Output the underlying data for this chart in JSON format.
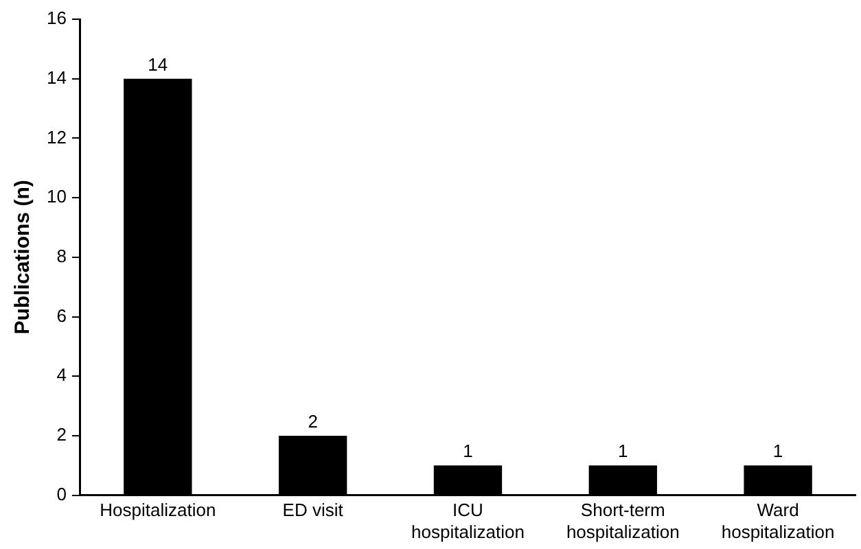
{
  "chart_data": {
    "type": "bar",
    "ylabel": "Publications (n)",
    "categories": [
      "Hospitalization",
      "ED visit",
      "ICU\nhospitalization",
      "Short-term\nhospitalization",
      "Ward\nhospitalization"
    ],
    "values": [
      14,
      2,
      1,
      1,
      1
    ],
    "color": "#000000",
    "ylim": [
      0,
      16
    ],
    "yticks": [
      0,
      2,
      4,
      6,
      8,
      10,
      12,
      14,
      16
    ],
    "grid": false,
    "legend": false,
    "data_labels": true
  }
}
